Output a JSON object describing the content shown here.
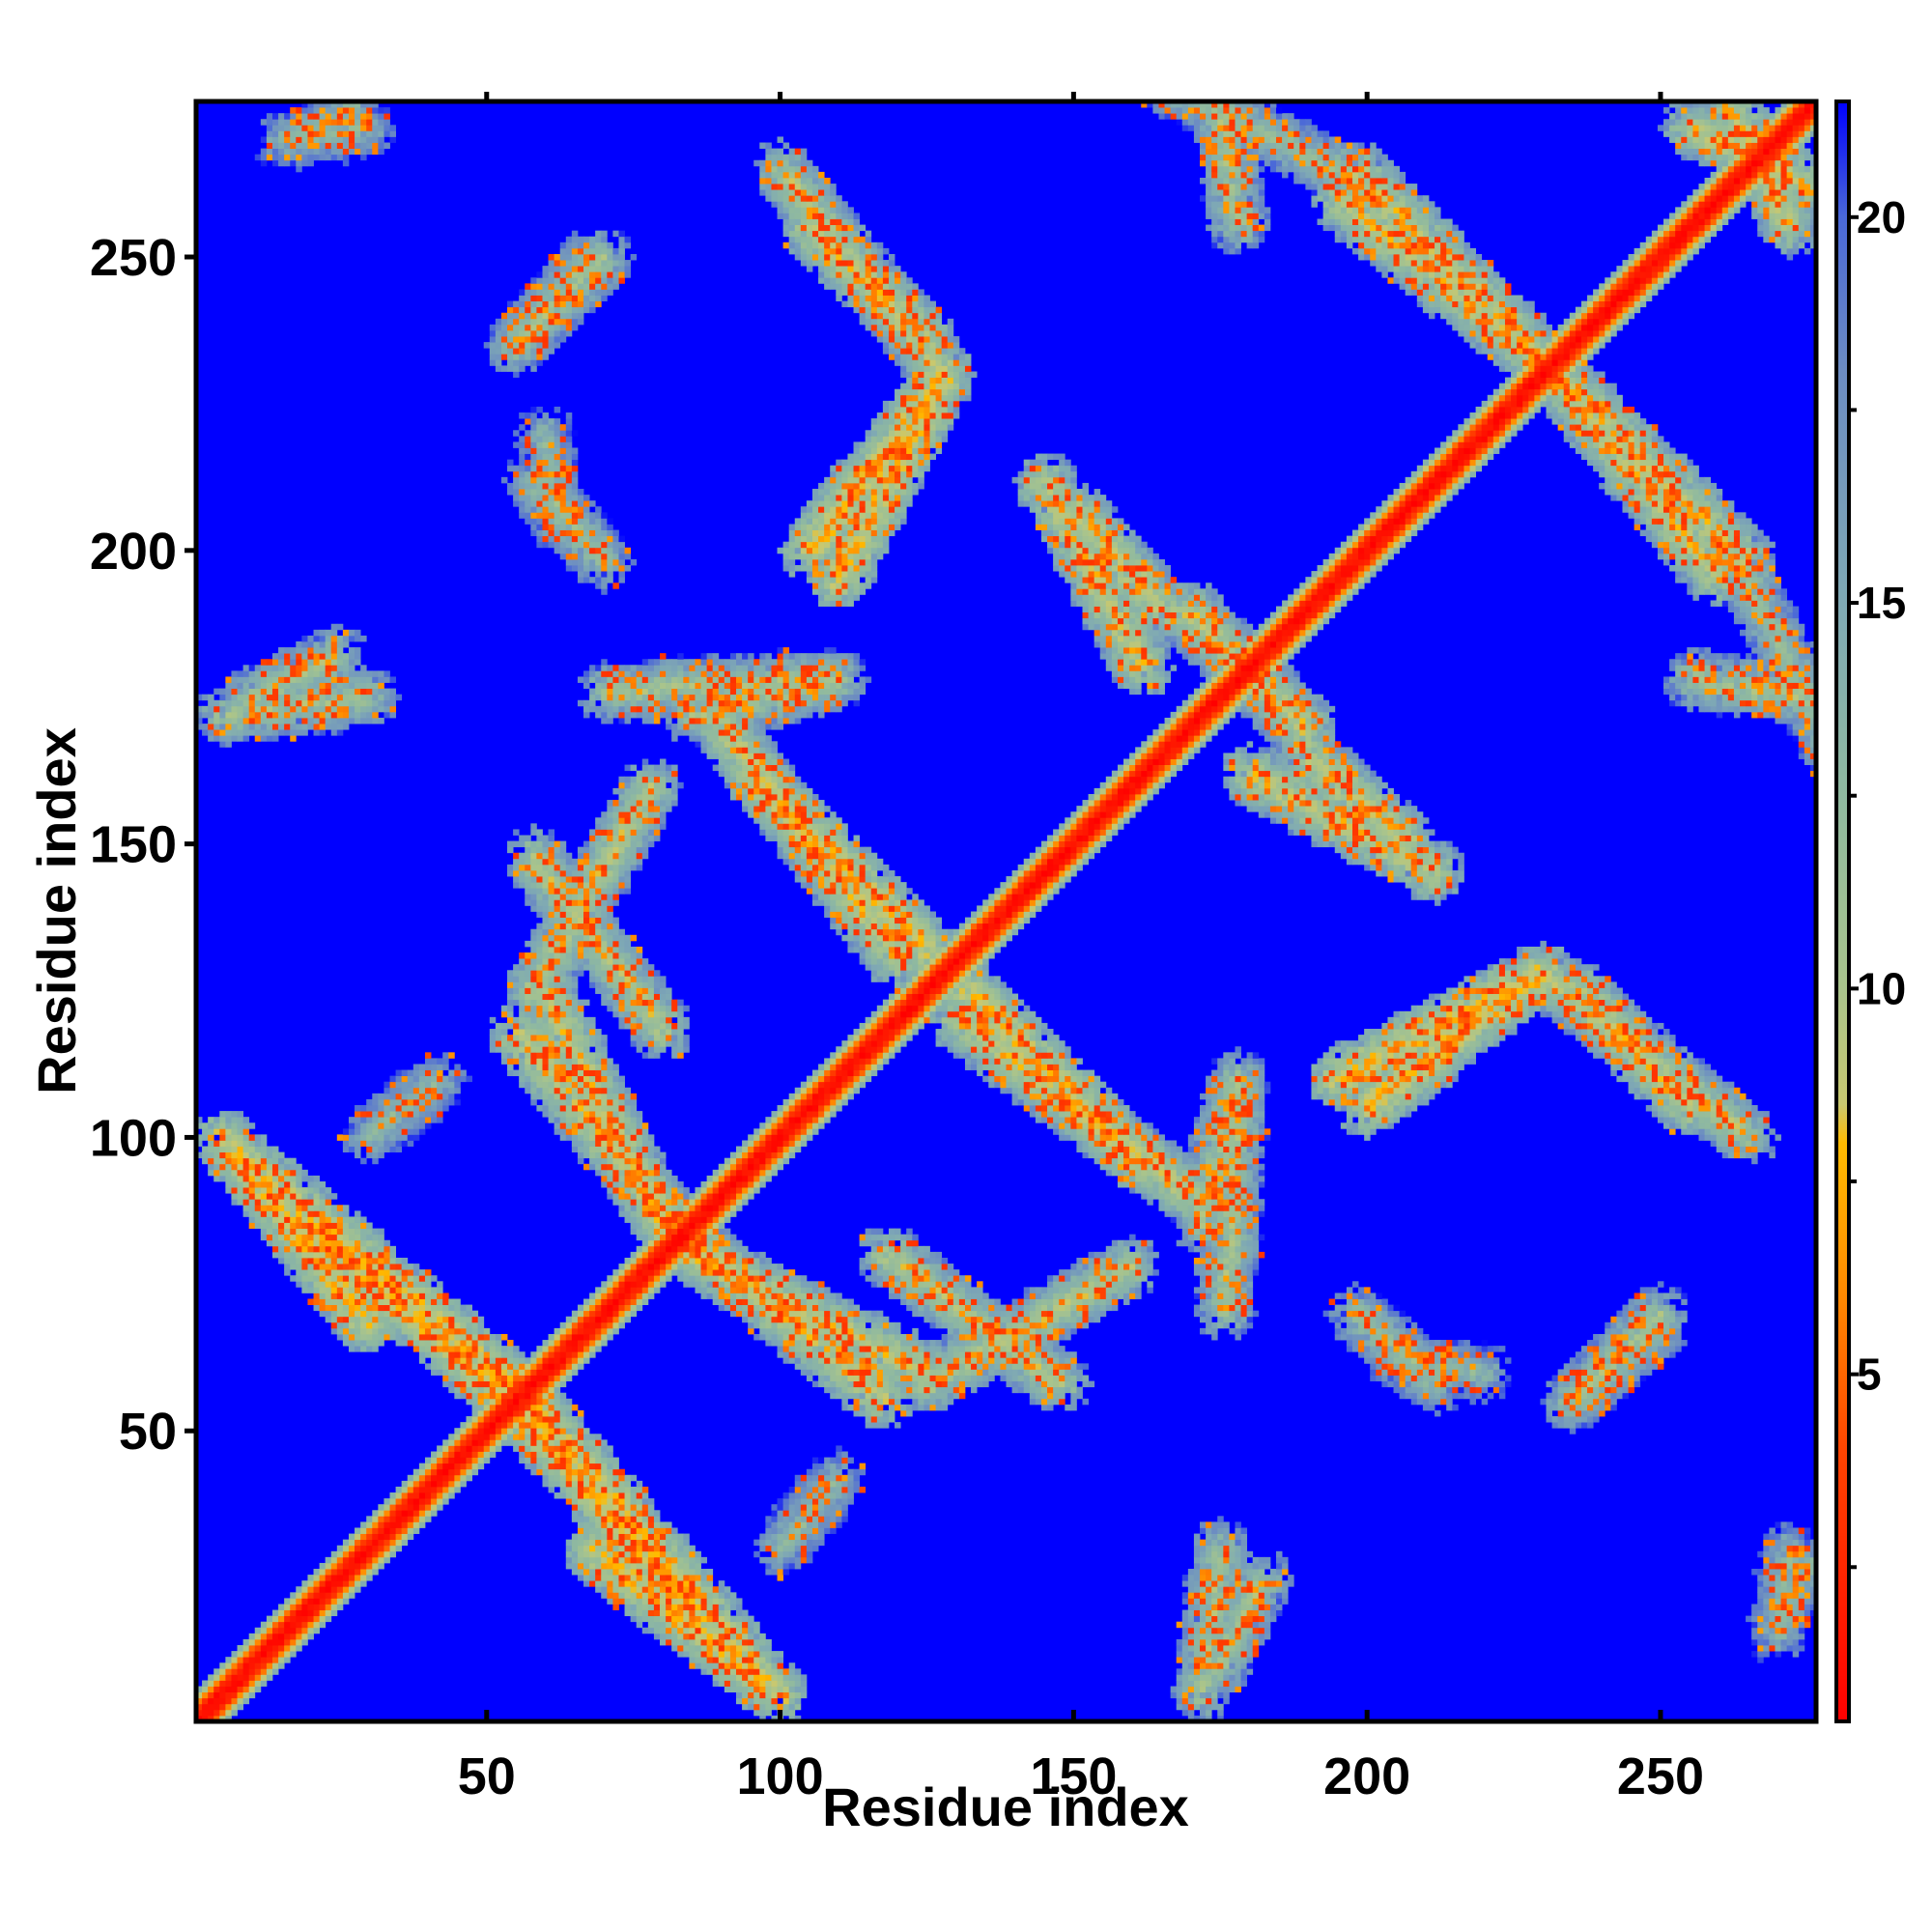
{
  "chart_data": {
    "type": "heatmap",
    "title": "",
    "xlabel": "Residue index",
    "ylabel": "Residue index",
    "n_residues": 276,
    "xlim": [
      1,
      276
    ],
    "ylim": [
      1,
      276
    ],
    "x_ticks": [
      50,
      100,
      150,
      200,
      250
    ],
    "y_ticks": [
      50,
      100,
      150,
      200,
      250
    ],
    "colorbar": {
      "range": [
        0.5,
        21.5
      ],
      "ticks": [
        5,
        10,
        15,
        20
      ],
      "stops": [
        {
          "value": 0.5,
          "color": "#ff0000"
        },
        {
          "value": 4.0,
          "color": "#ff4400"
        },
        {
          "value": 6.0,
          "color": "#ff8800"
        },
        {
          "value": 8.0,
          "color": "#ffbb00"
        },
        {
          "value": 8.5,
          "color": "#c8c870"
        },
        {
          "value": 10.0,
          "color": "#a9c48c"
        },
        {
          "value": 12.5,
          "color": "#8fb9a0"
        },
        {
          "value": 15.0,
          "color": "#7fa9b4"
        },
        {
          "value": 18.0,
          "color": "#6c8cc2"
        },
        {
          "value": 20.0,
          "color": "#4a68d8"
        },
        {
          "value": 21.5,
          "color": "#0000ff"
        }
      ]
    },
    "background_value": 21.5,
    "background_color": "#0000ff",
    "diagonal_band": {
      "halfwidth": 5,
      "value_center": 1.0,
      "value_edge": 14.0
    },
    "contact_bands": [
      {
        "from": [
          5,
          100
        ],
        "to": [
          30,
          68
        ],
        "value": 8
      },
      {
        "from": [
          20,
          85
        ],
        "to": [
          60,
          50
        ],
        "value": 8
      },
      {
        "from": [
          55,
          58
        ],
        "to": [
          95,
          10
        ],
        "value": 8
      },
      {
        "from": [
          55,
          118
        ],
        "to": [
          88,
          78
        ],
        "value": 9
      },
      {
        "from": [
          85,
          80
        ],
        "to": [
          125,
          60
        ],
        "value": 9
      },
      {
        "from": [
          125,
          58
        ],
        "to": [
          160,
          78
        ],
        "value": 10
      },
      {
        "from": [
          58,
          148
        ],
        "to": [
          80,
          118
        ],
        "value": 10
      },
      {
        "from": [
          95,
          162
        ],
        "to": [
          125,
          132
        ],
        "value": 8
      },
      {
        "from": [
          130,
          120
        ],
        "to": [
          170,
          90
        ],
        "value": 9
      },
      {
        "from": [
          172,
          85
        ],
        "to": [
          178,
          110
        ],
        "value": 11
      },
      {
        "from": [
          195,
          110
        ],
        "to": [
          230,
          128
        ],
        "value": 8
      },
      {
        "from": [
          230,
          128
        ],
        "to": [
          265,
          100
        ],
        "value": 10
      },
      {
        "from": [
          180,
          162
        ],
        "to": [
          212,
          145
        ],
        "value": 9
      },
      {
        "from": [
          150,
          207
        ],
        "to": [
          165,
          190
        ],
        "value": 9
      },
      {
        "from": [
          105,
          200
        ],
        "to": [
          125,
          225
        ],
        "value": 8
      },
      {
        "from": [
          105,
          255
        ],
        "to": [
          125,
          236
        ],
        "value": 9
      },
      {
        "from": [
          55,
          235
        ],
        "to": [
          70,
          250
        ],
        "value": 11
      },
      {
        "from": [
          58,
          212
        ],
        "to": [
          70,
          198
        ],
        "value": 12
      },
      {
        "from": [
          195,
          260
        ],
        "to": [
          230,
          232
        ],
        "value": 9
      },
      {
        "from": [
          232,
          230
        ],
        "to": [
          265,
          198
        ],
        "value": 9
      },
      {
        "from": [
          170,
          190
        ],
        "to": [
          190,
          168
        ],
        "value": 10
      },
      {
        "from": [
          165,
          280
        ],
        "to": [
          200,
          262
        ],
        "value": 12
      },
      {
        "from": [
          255,
          272
        ],
        "to": [
          276,
          262
        ],
        "value": 9
      },
      {
        "from": [
          5,
          172
        ],
        "to": [
          30,
          175
        ],
        "value": 11
      },
      {
        "from": [
          70,
          176
        ],
        "to": [
          110,
          178
        ],
        "value": 11
      },
      {
        "from": [
          255,
          178
        ],
        "to": [
          276,
          175
        ],
        "value": 11
      },
      {
        "from": [
          175,
          10
        ],
        "to": [
          182,
          25
        ],
        "value": 11
      },
      {
        "from": [
          235,
          55
        ],
        "to": [
          250,
          68
        ],
        "value": 12
      },
      {
        "from": [
          205,
          62
        ],
        "to": [
          220,
          60
        ],
        "value": 13
      },
      {
        "from": [
          100,
          30
        ],
        "to": [
          110,
          42
        ],
        "value": 13
      },
      {
        "from": [
          270,
          18
        ],
        "to": [
          276,
          28
        ],
        "value": 13
      },
      {
        "from": [
          15,
          270
        ],
        "to": [
          30,
          272
        ],
        "value": 13
      }
    ]
  }
}
